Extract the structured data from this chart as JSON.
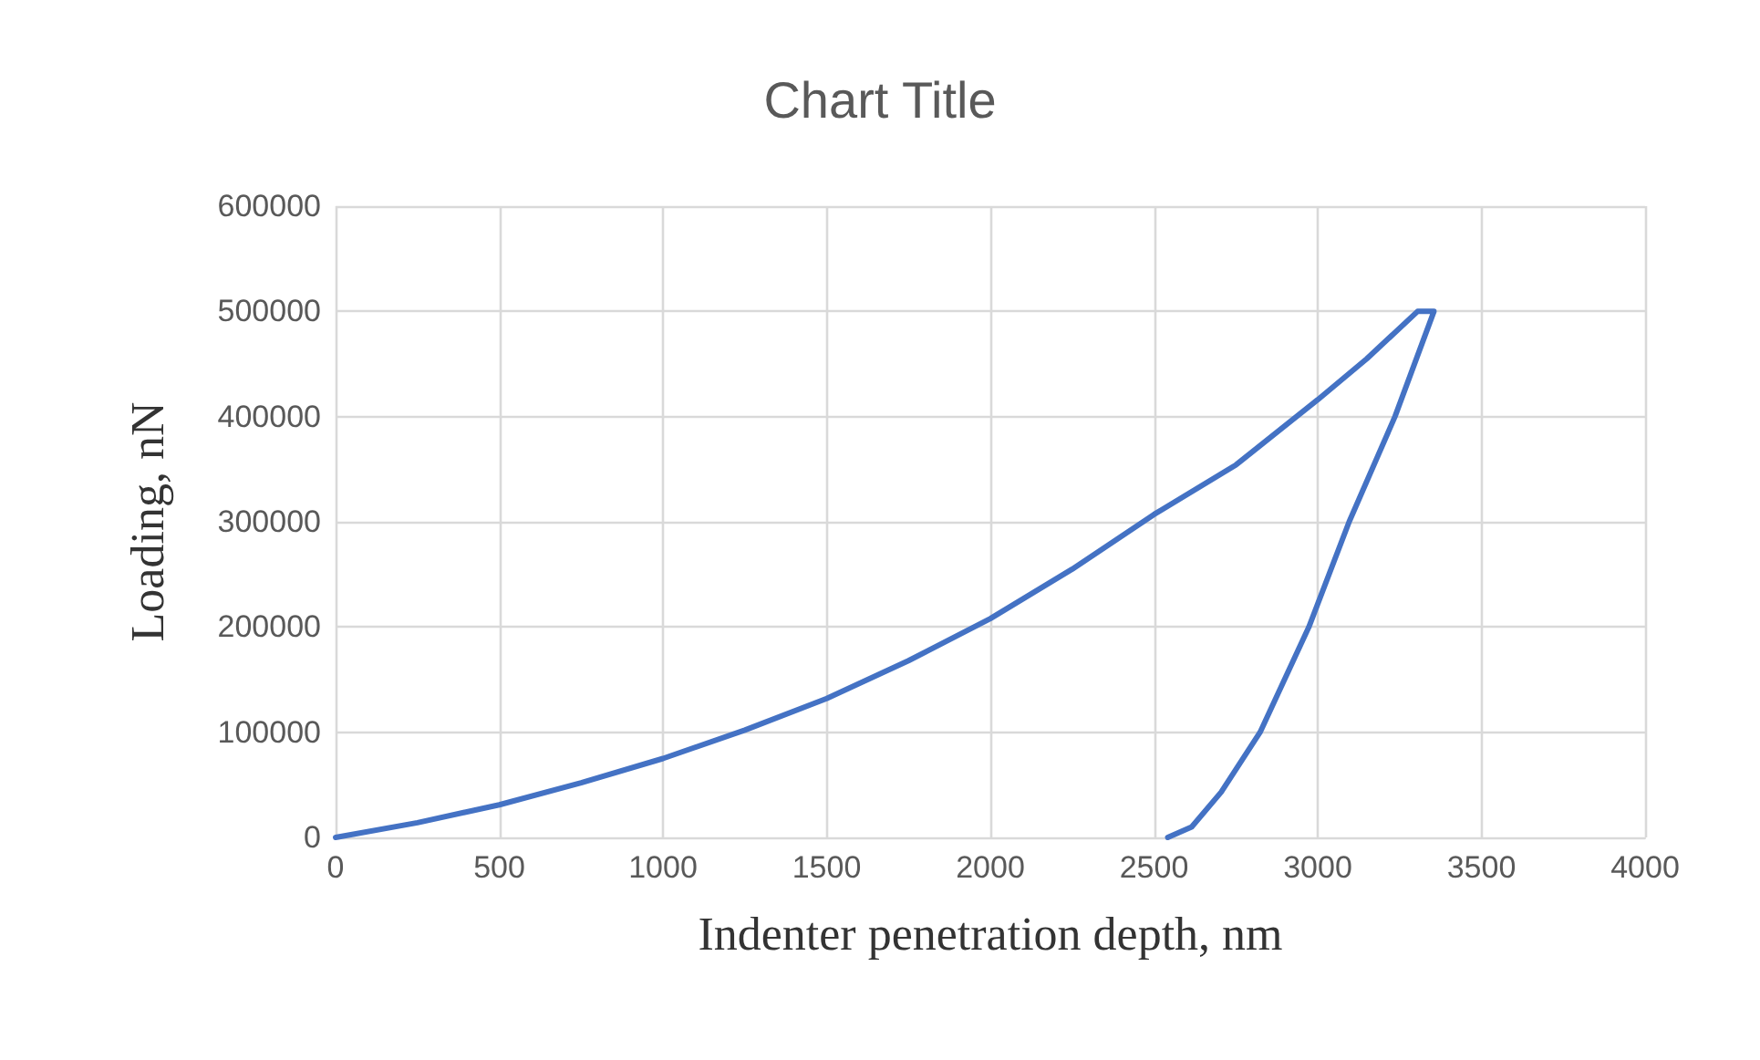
{
  "chart_data": {
    "type": "line",
    "title": "Chart Title",
    "xlabel": "Indenter penetration depth, nm",
    "ylabel": "Loading, nN",
    "series": [
      {
        "color": "#4472c4",
        "x": [
          0,
          250,
          500,
          750,
          1000,
          1250,
          1500,
          1750,
          2000,
          2250,
          2500,
          2750,
          3000,
          3150,
          3305,
          3355,
          3236,
          3096,
          2973,
          2824,
          2705,
          2615,
          2542
        ],
        "values": [
          0,
          14000,
          31000,
          52000,
          75000,
          102000,
          132000,
          168000,
          208000,
          255000,
          307000,
          354000,
          416000,
          455000,
          500000,
          500000,
          400000,
          300000,
          200000,
          100000,
          43000,
          10000,
          0
        ]
      }
    ],
    "xlim": [
      0,
      4000
    ],
    "xticks": [
      0,
      500,
      1000,
      1500,
      2000,
      2500,
      3000,
      3500,
      4000
    ],
    "ylim": [
      0,
      600000
    ],
    "yticks": [
      0,
      100000,
      200000,
      300000,
      400000,
      500000,
      600000
    ],
    "grid": true,
    "marker": "none",
    "line_style": "solid"
  }
}
